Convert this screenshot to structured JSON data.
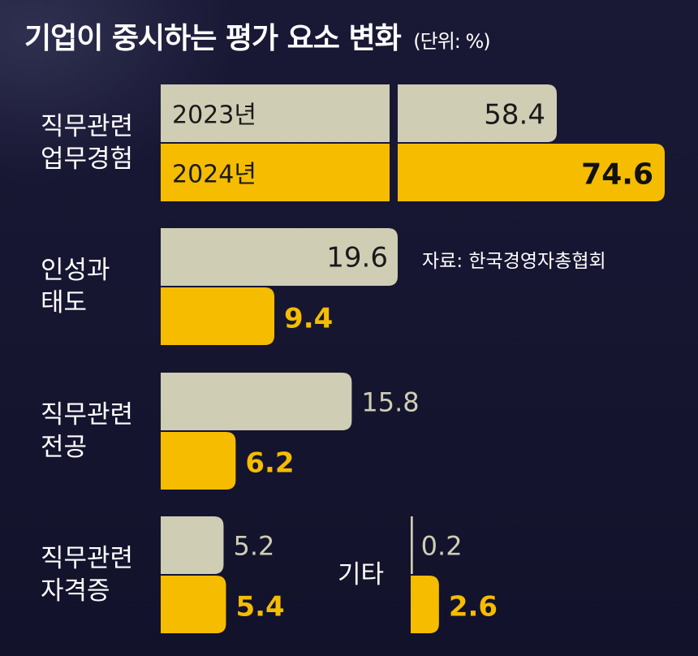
{
  "title": "기업이 중시하는 평가 요소 변화",
  "unit": "(단위: %)",
  "source": "자료: 한국경영자총협회",
  "colors": {
    "y2023": "#cfcdb4",
    "y2024": "#f5bc00",
    "background": "#14142e"
  },
  "chart_data": {
    "type": "bar",
    "orientation": "horizontal",
    "title": "기업이 중시하는 평가 요소 변화",
    "unit": "%",
    "categories": [
      {
        "id": "experience",
        "lines": [
          "직무관련",
          "업무경험"
        ]
      },
      {
        "id": "attitude",
        "lines": [
          "인성과",
          "태도"
        ]
      },
      {
        "id": "major",
        "lines": [
          "직무관련",
          "전공"
        ]
      },
      {
        "id": "certificate",
        "lines": [
          "직무관련",
          "자격증"
        ]
      },
      {
        "id": "other",
        "lines": [
          "기타"
        ]
      }
    ],
    "series": [
      {
        "name": "2023년",
        "values": [
          58.4,
          19.6,
          15.8,
          5.2,
          0.2
        ]
      },
      {
        "name": "2024년",
        "values": [
          74.6,
          9.4,
          6.2,
          5.4,
          2.6
        ]
      }
    ],
    "legend": "inside-first-bars",
    "grid": false
  }
}
